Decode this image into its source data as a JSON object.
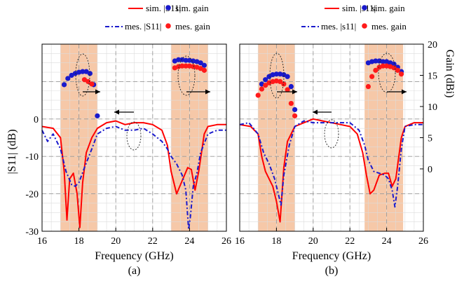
{
  "colors": {
    "sim_s11": "#ff0000",
    "mes_s11": "#1a1acc",
    "sim_gain": "#1a1acc",
    "mes_gain": "#ff1a1a",
    "band": "#f6c8a8",
    "grid": "#999999"
  },
  "chart_data": [
    {
      "type": "line",
      "panel": "a",
      "caption": "(a)",
      "xlabel": "Frequency (GHz)",
      "ylabel": "|S11| (dB)",
      "y2label": "",
      "xlim": [
        16,
        26
      ],
      "ylim": [
        -30,
        20
      ],
      "y2lim": [
        -10,
        20
      ],
      "xticks": [
        "16",
        "18",
        "20",
        "22",
        "24",
        "26"
      ],
      "yticks": [
        "-30",
        "-20",
        "-10",
        "0"
      ],
      "y2ticks": [],
      "bands": [
        [
          17,
          19
        ],
        [
          23,
          25
        ]
      ],
      "legend": {
        "sim_s11": "sim. |S11|",
        "mes_s11": "mes. |S11|",
        "sim_gain": "sim. gain",
        "mes_gain": "mes. gain"
      },
      "series": [
        {
          "name": "sim. |S11|",
          "axis": "left",
          "style": "solid",
          "x": [
            16,
            16.6,
            17.0,
            17.2,
            17.35,
            17.5,
            17.7,
            17.9,
            18.05,
            18.2,
            18.4,
            18.7,
            19.0,
            19.5,
            20.0,
            20.5,
            21.0,
            21.5,
            22.0,
            22.5,
            22.8,
            23.0,
            23.3,
            23.6,
            23.9,
            24.1,
            24.3,
            24.5,
            24.8,
            25.0,
            25.5,
            26
          ],
          "y": [
            -2,
            -2.5,
            -5,
            -14,
            -27,
            -16,
            -14.5,
            -20,
            -29,
            -17,
            -9,
            -5,
            -2.5,
            -1,
            -0.5,
            -1.5,
            -1,
            -1,
            -1.5,
            -3,
            -7,
            -14,
            -20,
            -16.5,
            -13,
            -13.5,
            -19,
            -14,
            -4,
            -2,
            -1.5,
            -1.5
          ]
        },
        {
          "name": "mes. |S11|",
          "axis": "left",
          "style": "dashed",
          "x": [
            16,
            16.3,
            16.6,
            17.0,
            17.3,
            17.6,
            17.8,
            18.0,
            18.3,
            18.7,
            19.0,
            19.5,
            20.0,
            20.5,
            21.0,
            21.5,
            22.0,
            22.5,
            22.8,
            23.0,
            23.3,
            23.6,
            23.8,
            23.95,
            24.05,
            24.2,
            24.4,
            24.6,
            25.0,
            25.5,
            26
          ],
          "y": [
            -3,
            -6,
            -4,
            -8,
            -14,
            -17.5,
            -18,
            -17,
            -13,
            -8,
            -4,
            -2.5,
            -2,
            -3,
            -3,
            -2.5,
            -4,
            -6,
            -8,
            -10,
            -12,
            -15,
            -19,
            -29.5,
            -26,
            -18,
            -14.5,
            -9,
            -4,
            -3,
            -3
          ]
        },
        {
          "name": "sim. gain",
          "axis": "right",
          "style": "markers",
          "x": [
            17.2,
            17.4,
            17.6,
            17.8,
            18.0,
            18.2,
            18.4,
            18.6,
            18.8,
            19.0,
            23.2,
            23.4,
            23.6,
            23.8,
            24.0,
            24.2,
            24.4,
            24.6,
            24.8
          ],
          "y": [
            13.5,
            14.5,
            15,
            15.3,
            15.5,
            15.6,
            15.6,
            15.3,
            13.5,
            8.5,
            17.3,
            17.5,
            17.5,
            17.4,
            17.4,
            17.3,
            17.2,
            17.0,
            16.6
          ]
        },
        {
          "name": "mes. gain",
          "axis": "right",
          "style": "markers",
          "x": [
            18.3,
            18.5,
            18.7,
            23.2,
            23.4,
            23.6,
            23.8,
            24.0,
            24.2,
            24.4,
            24.6,
            24.8
          ],
          "y": [
            14.3,
            14.0,
            13.6,
            16.2,
            16.4,
            16.5,
            16.5,
            16.5,
            16.4,
            16.3,
            16.1,
            15.8
          ]
        }
      ]
    },
    {
      "type": "line",
      "panel": "b",
      "caption": "(b)",
      "xlabel": "Frequency (GHz)",
      "ylabel": "",
      "y2label": "Gain (dBi)",
      "xlim": [
        16,
        26
      ],
      "ylim": [
        -30,
        20
      ],
      "y2lim": [
        -10,
        20
      ],
      "xticks": [
        "16",
        "18",
        "20",
        "22",
        "24",
        "26"
      ],
      "yticks": [],
      "y2ticks": [
        "0",
        "5",
        "10",
        "15",
        "20"
      ],
      "bands": [
        [
          17,
          19
        ],
        [
          22.8,
          24.9
        ]
      ],
      "legend": {
        "sim_s11": "sim. |s11|",
        "mes_s11": "mes. |s11|",
        "sim_gain": "sim. gain",
        "mes_gain": "mes. gain"
      },
      "series": [
        {
          "name": "sim. |s11|",
          "axis": "left",
          "style": "solid",
          "x": [
            16,
            16.6,
            17.0,
            17.2,
            17.4,
            17.6,
            17.8,
            18.0,
            18.2,
            18.4,
            18.6,
            19.0,
            19.5,
            20.0,
            20.5,
            21.0,
            21.5,
            22.0,
            22.4,
            22.7,
            22.9,
            23.1,
            23.3,
            23.6,
            23.9,
            24.1,
            24.3,
            24.5,
            24.8,
            25.0,
            25.5,
            26
          ],
          "y": [
            -1.5,
            -2,
            -4,
            -10,
            -14,
            -16,
            -18,
            -22,
            -27.5,
            -13,
            -6,
            -2,
            -1,
            0,
            -0.5,
            -1,
            -1.5,
            -2,
            -4,
            -9,
            -15,
            -20,
            -19,
            -15,
            -14.5,
            -14.5,
            -18,
            -16,
            -5,
            -2,
            -1,
            -1
          ]
        },
        {
          "name": "mes. |s11|",
          "axis": "left",
          "style": "dashed",
          "x": [
            16,
            16.5,
            17.0,
            17.3,
            17.6,
            17.9,
            18.1,
            18.25,
            18.4,
            18.7,
            19.0,
            19.5,
            20.0,
            20.5,
            21.0,
            21.5,
            22.0,
            22.5,
            22.8,
            23.0,
            23.3,
            23.6,
            23.9,
            24.1,
            24.3,
            24.45,
            24.6,
            24.8,
            25.0,
            25.5,
            26
          ],
          "y": [
            -1.5,
            -1,
            -4,
            -9,
            -12,
            -16,
            -20,
            -23,
            -15,
            -7,
            -2,
            -0.5,
            -1,
            -1,
            -1,
            -1,
            -1,
            -3,
            -7,
            -11,
            -14,
            -14.5,
            -15,
            -16,
            -19,
            -23.5,
            -18,
            -8,
            -2,
            -1.5,
            -1.5
          ]
        },
        {
          "name": "sim. gain",
          "axis": "right",
          "style": "markers",
          "x": [
            17.2,
            17.4,
            17.6,
            17.8,
            18.0,
            18.2,
            18.4,
            18.6,
            18.8,
            19.0,
            23.0,
            23.2,
            23.4,
            23.6,
            23.8,
            24.0,
            24.2,
            24.4,
            24.6,
            24.8
          ],
          "y": [
            13.6,
            14.3,
            14.8,
            15.1,
            15.2,
            15.2,
            15.1,
            14.8,
            13.2,
            9.5,
            17.0,
            17.2,
            17.3,
            17.3,
            17.2,
            17.2,
            17.0,
            16.8,
            16.3,
            15.6
          ]
        },
        {
          "name": "mes. gain",
          "axis": "right",
          "style": "markers",
          "x": [
            17.0,
            17.2,
            17.4,
            17.6,
            17.8,
            18.0,
            18.2,
            18.4,
            18.6,
            18.8,
            19.0,
            23.0,
            23.2,
            23.4,
            23.6,
            23.8,
            24.0,
            24.2,
            24.4,
            24.6,
            24.8
          ],
          "y": [
            11.8,
            12.8,
            13.4,
            13.8,
            14.0,
            14.1,
            14.0,
            13.6,
            12.7,
            10.5,
            8.5,
            13.2,
            14.8,
            15.8,
            16.3,
            16.5,
            16.5,
            16.4,
            16.2,
            15.8,
            15.2
          ]
        }
      ]
    }
  ]
}
